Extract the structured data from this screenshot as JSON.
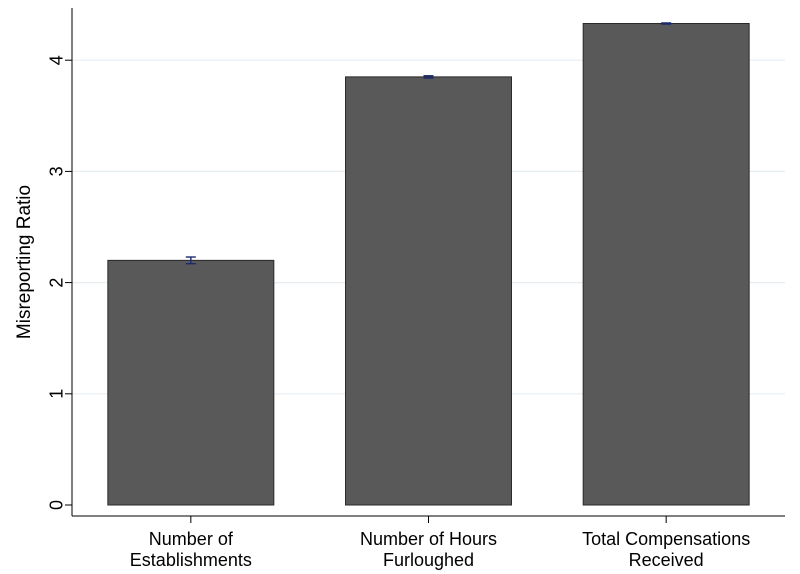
{
  "chart_data": {
    "type": "bar",
    "title": "",
    "xlabel": "",
    "ylabel": "Misreporting Ratio",
    "categories": [
      [
        "Number of",
        "Establishments"
      ],
      [
        "Number of Hours",
        "Furloughed"
      ],
      [
        "Total Compensations",
        "Received"
      ]
    ],
    "values": [
      2.2,
      3.85,
      4.33
    ],
    "error_bars": [
      {
        "low": 2.17,
        "high": 2.23
      },
      {
        "low": 3.84,
        "high": 3.86
      },
      {
        "low": 4.325,
        "high": 4.335
      }
    ],
    "ylim": [
      0,
      4.4
    ],
    "yticks": [
      0,
      1,
      2,
      3,
      4
    ],
    "grid": true,
    "legend": "none",
    "colors": {
      "bar_fill": "#595959",
      "bar_stroke": "#2a2a2a",
      "error_bar": "#1a2a6c",
      "grid": "#e6eef2",
      "axis": "#000000"
    }
  }
}
